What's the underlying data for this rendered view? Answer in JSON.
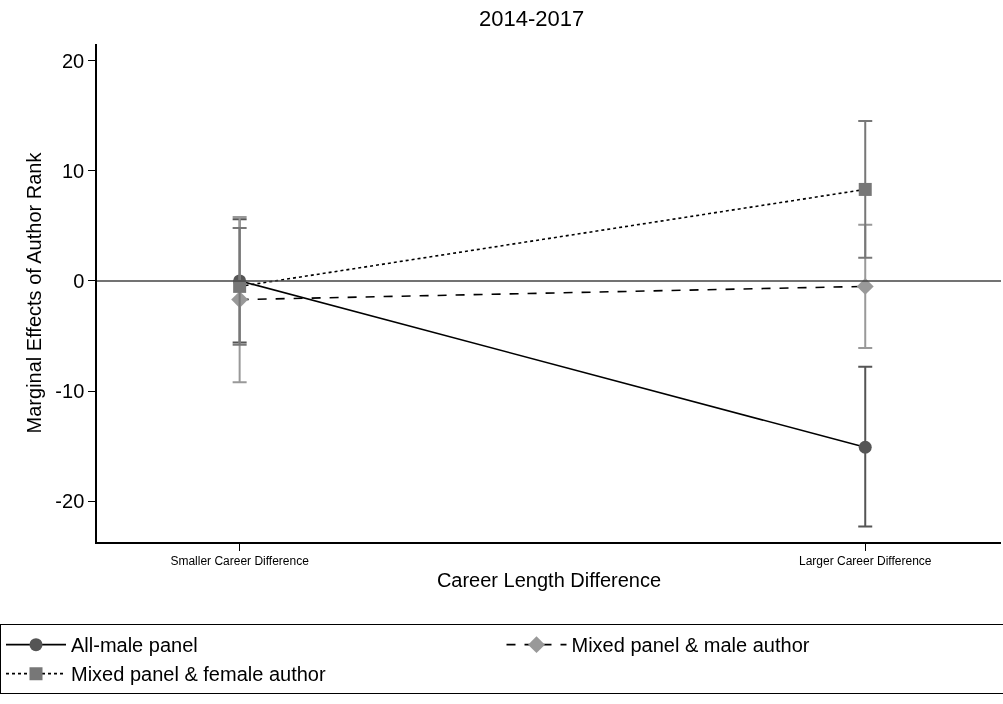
{
  "chart_data": {
    "type": "line",
    "title": "2014-2017",
    "xlabel": "Career Length Difference",
    "ylabel": "Marginal Effects of Author Rank",
    "categories": [
      "Smaller Career Difference",
      "Larger Career Difference"
    ],
    "series": [
      {
        "name": "All-male panel",
        "color": "#555555",
        "marker": "circle",
        "line_style": "solid",
        "values": [
          0,
          -15.1
        ],
        "errors": [
          [
            -5.6,
            5.6
          ],
          [
            -22.3,
            -7.8
          ]
        ]
      },
      {
        "name": "Mixed panel & male author",
        "color": "#999999",
        "marker": "diamond",
        "line_style": "dashed",
        "values": [
          -1.7,
          -0.5
        ],
        "errors": [
          [
            -9.2,
            5.8
          ],
          [
            -6.1,
            5.1
          ]
        ]
      },
      {
        "name": "Mixed panel & female author",
        "color": "#777777",
        "marker": "square",
        "line_style": "dotted",
        "values": [
          -0.5,
          8.3
        ],
        "errors": [
          [
            -5.8,
            4.8
          ],
          [
            2.1,
            14.5
          ]
        ]
      }
    ],
    "ylim": [
      -23.7,
      21.5
    ],
    "yticks": [
      -20,
      -10,
      0,
      10,
      20
    ],
    "ref_lines": [
      {
        "axis": "y",
        "value": 0
      }
    ],
    "legend": "bottom"
  }
}
